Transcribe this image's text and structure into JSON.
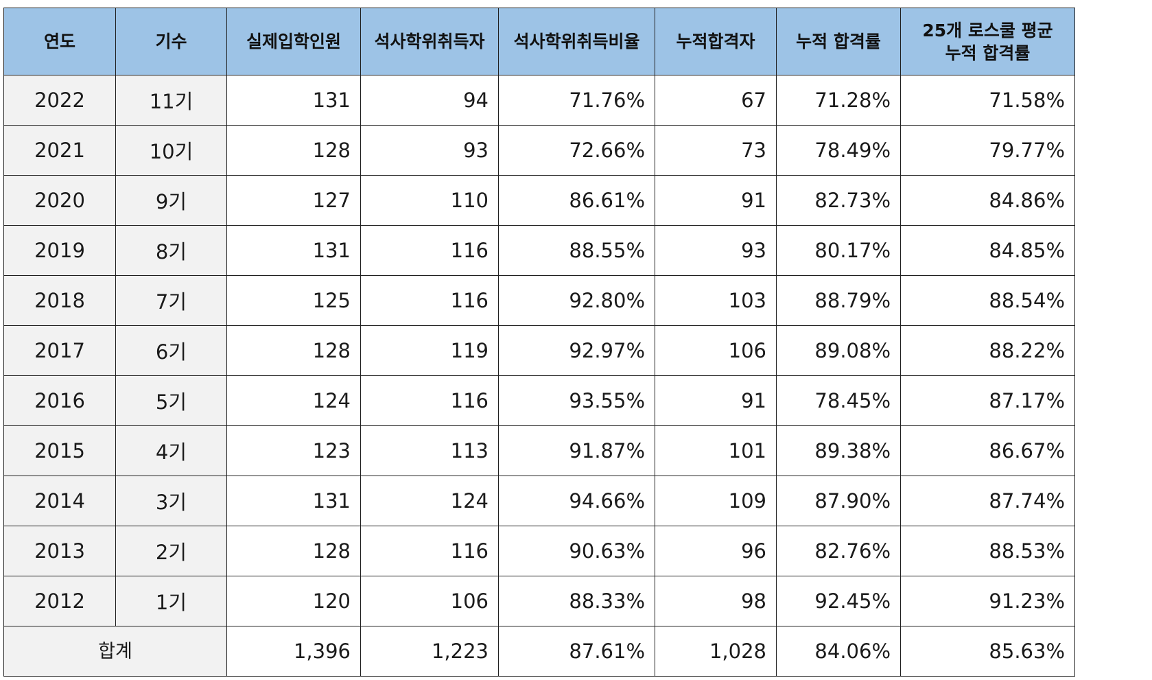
{
  "table": {
    "headers": {
      "year": "연도",
      "generation": "기수",
      "enrolled": "실제입학인원",
      "masters": "석사학위취득자",
      "masters_ratio": "석사학위취득비율",
      "cumulative_passers": "누적합격자",
      "cumulative_rate": "누적 합격률",
      "avg_rate_line1": "25개 로스쿨 평균",
      "avg_rate_line2": "누적 합격률"
    },
    "rows": [
      {
        "year": "2022",
        "generation": "11기",
        "enrolled": "131",
        "masters": "94",
        "masters_ratio": "71.76%",
        "cumulative_passers": "67",
        "cumulative_rate": "71.28%",
        "avg_rate": "71.58%"
      },
      {
        "year": "2021",
        "generation": "10기",
        "enrolled": "128",
        "masters": "93",
        "masters_ratio": "72.66%",
        "cumulative_passers": "73",
        "cumulative_rate": "78.49%",
        "avg_rate": "79.77%"
      },
      {
        "year": "2020",
        "generation": "9기",
        "enrolled": "127",
        "masters": "110",
        "masters_ratio": "86.61%",
        "cumulative_passers": "91",
        "cumulative_rate": "82.73%",
        "avg_rate": "84.86%"
      },
      {
        "year": "2019",
        "generation": "8기",
        "enrolled": "131",
        "masters": "116",
        "masters_ratio": "88.55%",
        "cumulative_passers": "93",
        "cumulative_rate": "80.17%",
        "avg_rate": "84.85%"
      },
      {
        "year": "2018",
        "generation": "7기",
        "enrolled": "125",
        "masters": "116",
        "masters_ratio": "92.80%",
        "cumulative_passers": "103",
        "cumulative_rate": "88.79%",
        "avg_rate": "88.54%"
      },
      {
        "year": "2017",
        "generation": "6기",
        "enrolled": "128",
        "masters": "119",
        "masters_ratio": "92.97%",
        "cumulative_passers": "106",
        "cumulative_rate": "89.08%",
        "avg_rate": "88.22%"
      },
      {
        "year": "2016",
        "generation": "5기",
        "enrolled": "124",
        "masters": "116",
        "masters_ratio": "93.55%",
        "cumulative_passers": "91",
        "cumulative_rate": "78.45%",
        "avg_rate": "87.17%"
      },
      {
        "year": "2015",
        "generation": "4기",
        "enrolled": "123",
        "masters": "113",
        "masters_ratio": "91.87%",
        "cumulative_passers": "101",
        "cumulative_rate": "89.38%",
        "avg_rate": "86.67%"
      },
      {
        "year": "2014",
        "generation": "3기",
        "enrolled": "131",
        "masters": "124",
        "masters_ratio": "94.66%",
        "cumulative_passers": "109",
        "cumulative_rate": "87.90%",
        "avg_rate": "87.74%"
      },
      {
        "year": "2013",
        "generation": "2기",
        "enrolled": "128",
        "masters": "116",
        "masters_ratio": "90.63%",
        "cumulative_passers": "96",
        "cumulative_rate": "82.76%",
        "avg_rate": "88.53%"
      },
      {
        "year": "2012",
        "generation": "1기",
        "enrolled": "120",
        "masters": "106",
        "masters_ratio": "88.33%",
        "cumulative_passers": "98",
        "cumulative_rate": "92.45%",
        "avg_rate": "91.23%"
      }
    ],
    "total": {
      "label": "합계",
      "enrolled": "1,396",
      "masters": "1,223",
      "masters_ratio": "87.61%",
      "cumulative_passers": "1,028",
      "cumulative_rate": "84.06%",
      "avg_rate": "85.63%"
    }
  },
  "colors": {
    "header_bg": "#9dc3e6",
    "label_col_bg": "#f2f2f2",
    "border": "#1f1f1f"
  }
}
